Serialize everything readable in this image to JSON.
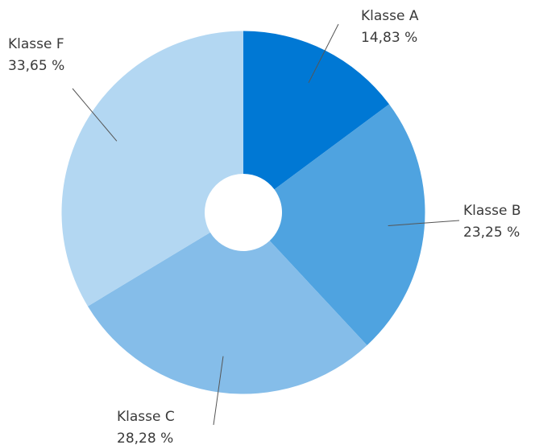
{
  "chart_data": {
    "type": "pie",
    "categories": [
      "Klasse A",
      "Klasse B",
      "Klasse C",
      "Klasse F"
    ],
    "values": [
      14.83,
      23.25,
      28.28,
      33.65
    ],
    "value_labels": [
      "14,83 %",
      "23,25 %",
      "28,28 %",
      "33,65 %"
    ],
    "colors": [
      "#0078d4",
      "#4fa3e0",
      "#85bde9",
      "#b3d7f2"
    ]
  }
}
